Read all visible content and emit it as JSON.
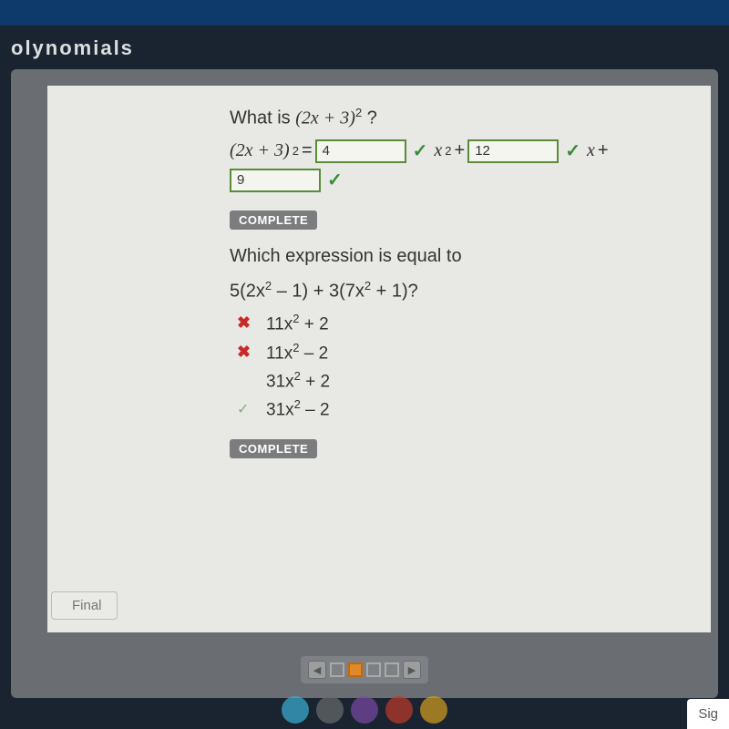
{
  "header": {
    "title_partial": "olynomials"
  },
  "question1": {
    "prompt_prefix": "What is ",
    "expr_base": "(2x + 3)",
    "expr_exp": "2",
    "prompt_suffix": "?",
    "lhs_base": "(2x + 3)",
    "lhs_exp": "2",
    "equals": "=",
    "inputs": {
      "coef_x2": "4",
      "coef_x": "12",
      "constant": "9"
    },
    "checkmark": "✓",
    "term_x2_base": "x",
    "term_x2_exp": "2",
    "plus": "+",
    "term_x_base": "x"
  },
  "buttons": {
    "complete": "COMPLETE"
  },
  "question2": {
    "prompt_line1": "Which expression is equal to",
    "prompt_expr_a": "5(2x",
    "prompt_expr_b": " – 1) + 3(7x",
    "prompt_expr_c": " + 1)?",
    "sup2": "2",
    "options": [
      {
        "mark": "wrong",
        "base": "11x",
        "tail": " + 2"
      },
      {
        "mark": "wrong",
        "base": "11x",
        "tail": " – 2"
      },
      {
        "mark": "none",
        "base": "31x",
        "tail": " + 2"
      },
      {
        "mark": "faint",
        "base": "31x",
        "tail": " – 2"
      }
    ],
    "marks": {
      "wrong": "✖",
      "faint": "✓"
    }
  },
  "nav": {
    "prev": "◀",
    "next": "▶",
    "final_label": "Final"
  },
  "footer": {
    "signin_partial": "Sig"
  },
  "colors": {
    "dock": [
      "#3bb0d6",
      "#6a6c6e",
      "#7a4aa5",
      "#c0392b",
      "#d4a020"
    ]
  }
}
